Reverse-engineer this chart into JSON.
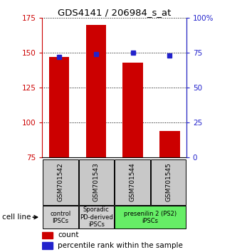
{
  "title": "GDS4141 / 206984_s_at",
  "samples": [
    "GSM701542",
    "GSM701543",
    "GSM701544",
    "GSM701545"
  ],
  "counts": [
    147,
    170,
    143,
    94
  ],
  "percentile_ranks": [
    72,
    74,
    75,
    73
  ],
  "ylim_left": [
    75,
    175
  ],
  "ylim_right": [
    0,
    100
  ],
  "yticks_left": [
    75,
    100,
    125,
    150,
    175
  ],
  "yticks_right": [
    0,
    25,
    50,
    75,
    100
  ],
  "yticklabels_right": [
    "0",
    "25",
    "50",
    "75",
    "100%"
  ],
  "cell_line_groups": [
    {
      "label": "control\nIPSCs",
      "start": 0,
      "end": 1,
      "color": "#d0d0d0"
    },
    {
      "label": "Sporadic\nPD-derived\niPSCs",
      "start": 1,
      "end": 2,
      "color": "#d0d0d0"
    },
    {
      "label": "presenilin 2 (PS2)\niPSCs",
      "start": 2,
      "end": 4,
      "color": "#66ee66"
    }
  ],
  "bar_color": "#cc0000",
  "dot_color": "#2222cc",
  "bar_bottom": 75,
  "tick_label_color_left": "#cc0000",
  "tick_label_color_right": "#2222cc",
  "legend_count_color": "#cc0000",
  "legend_pct_color": "#2222cc",
  "sample_box_color": "#c8c8c8"
}
